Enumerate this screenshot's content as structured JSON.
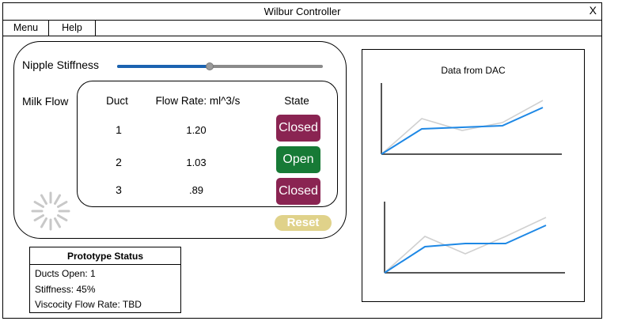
{
  "window": {
    "title": "Wilbur Controller",
    "close_label": "X"
  },
  "menu": {
    "items": [
      "Menu",
      "Help"
    ]
  },
  "stiffness": {
    "label": "Nipple Stiffness",
    "value_percent": 45
  },
  "milk_flow": {
    "label": "Milk Flow",
    "headers": {
      "duct": "Duct",
      "flow_rate": "Flow Rate: ml^3/s",
      "state": "State"
    },
    "rows": [
      {
        "duct": "1",
        "rate": "1.20",
        "state": "Closed"
      },
      {
        "duct": "2",
        "rate": "1.03",
        "state": "Open"
      },
      {
        "duct": "3",
        "rate": ".89",
        "state": "Closed"
      }
    ],
    "state_colors": {
      "Closed": "#8a2452",
      "Open": "#177a36"
    }
  },
  "reset": {
    "label": "Reset",
    "color": "#e0d28a"
  },
  "status": {
    "title": "Prototype Status",
    "lines": [
      "Ducts Open: 1",
      "Stiffness: 45%",
      "Viscocity Flow Rate: TBD"
    ]
  },
  "dac": {
    "title": "Data from DAC"
  },
  "chart_data": [
    {
      "type": "line",
      "title": "Data from DAC",
      "x": [
        0,
        1,
        2,
        3,
        4
      ],
      "series": [
        {
          "values": [
            0,
            4.5,
            3.0,
            4.0,
            6.8
          ],
          "color": "#d0d0d0"
        },
        {
          "values": [
            0,
            3.2,
            3.4,
            3.6,
            5.9
          ],
          "color": "#1e88e5"
        }
      ],
      "ylim": [
        0,
        9
      ]
    },
    {
      "type": "line",
      "x": [
        0,
        1,
        2,
        3,
        4
      ],
      "series": [
        {
          "values": [
            0,
            4.6,
            2.4,
            4.6,
            7.0
          ],
          "color": "#d0d0d0"
        },
        {
          "values": [
            0,
            3.3,
            3.7,
            3.7,
            6.0
          ],
          "color": "#1e88e5"
        }
      ],
      "ylim": [
        0,
        9
      ]
    }
  ]
}
